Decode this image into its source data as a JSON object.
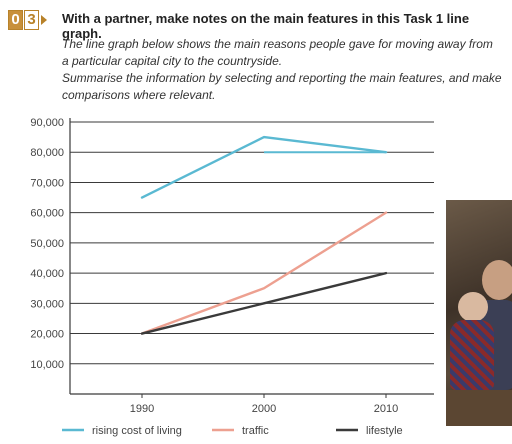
{
  "badge": {
    "digit1": "0",
    "digit2": "3"
  },
  "heading": "With a partner, make notes on the main features in this Task 1 line graph.",
  "description": [
    "The line graph below shows the main reasons people gave for moving away from a particular capital city to the countryside.",
    "Summarise the information by selecting and reporting the main features, and make comparisons where relevant."
  ],
  "chart_data": {
    "type": "line",
    "x": [
      1990,
      2000,
      2010
    ],
    "x_tick_labels": [
      "1990",
      "2000",
      "2010"
    ],
    "y_tick_labels": [
      "10,000",
      "20,000",
      "30,000",
      "40,000",
      "50,000",
      "60,000",
      "70,000",
      "80,000",
      "90,000"
    ],
    "ylim": [
      0,
      90000
    ],
    "grid": true,
    "legend_position": "bottom",
    "series": [
      {
        "name": "rising cost of living",
        "values": [
          65000,
          85000,
          80000
        ],
        "color": "#5ab9d2"
      },
      {
        "name": "traffic",
        "values": [
          20000,
          35000,
          60000
        ],
        "color": "#eda090"
      },
      {
        "name": "lifestyle",
        "values": [
          20000,
          30000,
          40000
        ],
        "color": "#3a3a3a"
      }
    ],
    "reference_line": {
      "value": 80000,
      "from_x": 2000,
      "to_x": 2010,
      "color": "#5ab9d2"
    }
  }
}
